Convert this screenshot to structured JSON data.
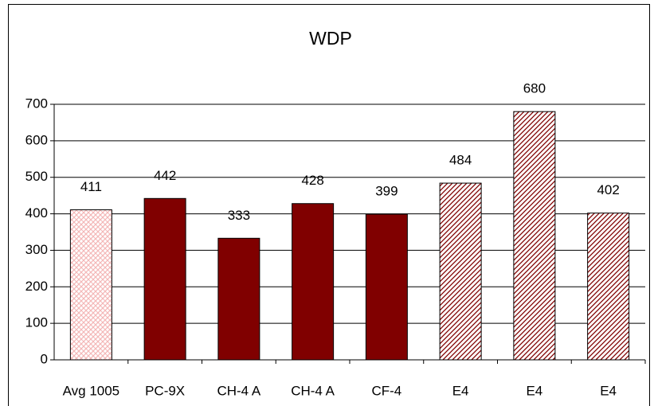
{
  "chart_data": {
    "type": "bar",
    "title": "WDP",
    "categories": [
      "Avg 1005",
      "PC-9X",
      "CH-4 A",
      "CH-4 A",
      "CF-4",
      "E4",
      "E4",
      "E4"
    ],
    "values": [
      411,
      442,
      333,
      428,
      399,
      484,
      680,
      402
    ],
    "colors": [
      "#f4b8b8",
      "#800000",
      "#800000",
      "#800000",
      "#800000",
      "#800000",
      "#800000",
      "#800000"
    ],
    "fill_styles": [
      "crosshatch",
      "solid",
      "solid",
      "solid",
      "solid",
      "diagonal",
      "diagonal",
      "diagonal"
    ],
    "ylim": [
      0,
      700
    ],
    "yticks": [
      0,
      100,
      200,
      300,
      400,
      500,
      600,
      700
    ],
    "grid": true
  }
}
